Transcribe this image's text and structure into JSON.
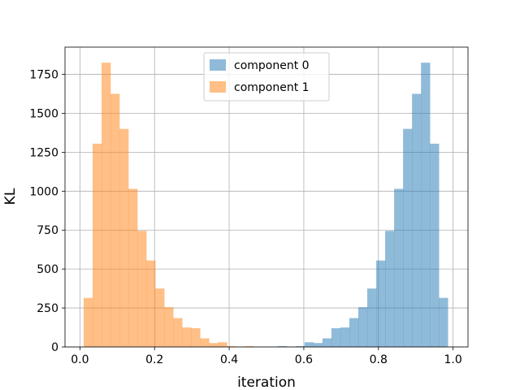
{
  "chart_data": {
    "type": "histogram",
    "title": "",
    "xlabel": "iteration",
    "ylabel": "KL",
    "xlim": [
      -0.04,
      1.04
    ],
    "ylim": [
      0,
      1925
    ],
    "xticks": [
      0.0,
      0.2,
      0.4,
      0.6,
      0.8,
      1.0
    ],
    "xtick_labels": [
      "0.0",
      "0.2",
      "0.4",
      "0.6",
      "0.8",
      "1.0"
    ],
    "yticks": [
      0,
      250,
      500,
      750,
      1000,
      1250,
      1500,
      1750
    ],
    "ytick_labels": [
      "0",
      "250",
      "500",
      "750",
      "1000",
      "1250",
      "1500",
      "1750"
    ],
    "grid": true,
    "legend_position": "top-center",
    "bin_width": 0.024,
    "series": [
      {
        "name": "component 0",
        "color": "#1f77b4",
        "alpha": 0.5,
        "bin_start": 0.53,
        "values": [
          5,
          0,
          5,
          30,
          25,
          55,
          120,
          125,
          185,
          255,
          375,
          555,
          745,
          1015,
          1400,
          1625,
          1825,
          1305,
          315
        ]
      },
      {
        "name": "component 1",
        "color": "#ff7f0e",
        "alpha": 0.5,
        "bin_start": 0.01,
        "values": [
          315,
          1305,
          1825,
          1625,
          1400,
          1015,
          745,
          555,
          375,
          255,
          185,
          125,
          120,
          55,
          25,
          30,
          5,
          0,
          5
        ]
      }
    ]
  }
}
